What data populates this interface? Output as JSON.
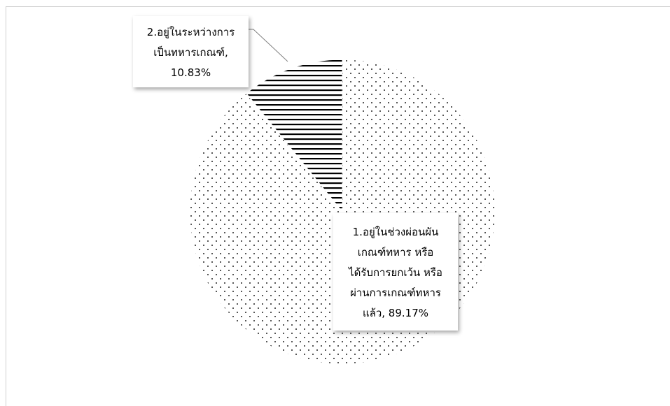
{
  "chart_data": {
    "type": "pie",
    "title": "",
    "slices": [
      {
        "label_lines": [
          "1.อยู่ในช่วงผ่อนผัน",
          "เกณฑ์ทหาร หรือ",
          "ได้รับการยกเว้น หรือ",
          "ผ่านการเกณฑ์ทหาร",
          "แล้ว, 89.17%"
        ],
        "value": 89.17,
        "pattern": "dots"
      },
      {
        "label_lines": [
          "2.อยู่ในระหว่างการ",
          "เป็นทหารเกณฑ์,",
          "10.83%"
        ],
        "value": 10.83,
        "pattern": "horizontal-lines"
      }
    ],
    "legend": "none",
    "data_labels": "callout"
  }
}
